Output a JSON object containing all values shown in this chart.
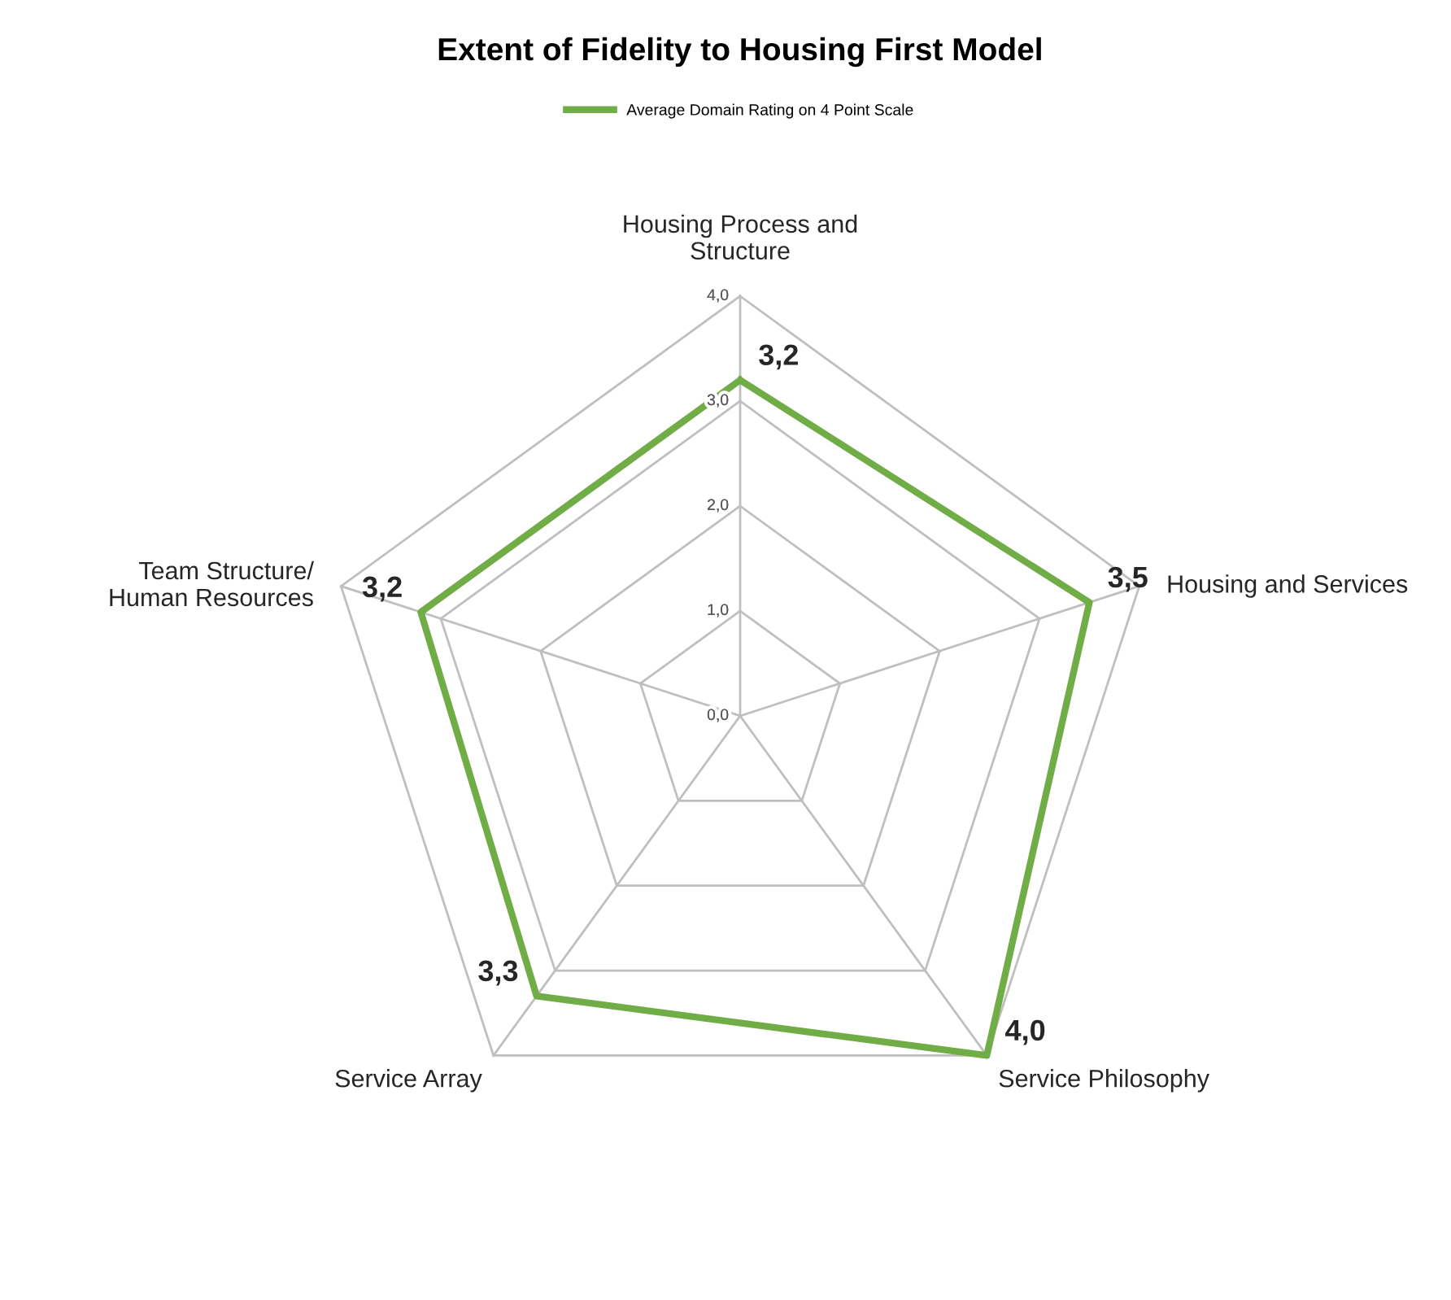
{
  "chart_data": {
    "type": "radar",
    "title": "Extent of Fidelity to Housing First Model",
    "categories": [
      "Housing Process and\nStructure",
      "Housing and Services",
      "Service Philosophy",
      "Service Array",
      "Team Structure/\nHuman Resources"
    ],
    "series": [
      {
        "name": "Average Domain Rating on 4 Point Scale",
        "color": "#70ad47",
        "values": [
          3.2,
          3.5,
          4.0,
          3.3,
          3.2
        ],
        "value_labels": [
          "3,2",
          "3,5",
          "4,0",
          "3,3",
          "3,2"
        ]
      }
    ],
    "ylim": [
      0,
      4
    ],
    "yticks": [
      {
        "value": 0,
        "label": "0,0"
      },
      {
        "value": 1,
        "label": "1,0"
      },
      {
        "value": 2,
        "label": "2,0"
      },
      {
        "value": 3,
        "label": "3,0"
      },
      {
        "value": 4,
        "label": "4,0"
      }
    ],
    "grid": true,
    "legend": "top",
    "marker": "none",
    "line_style": "solid"
  }
}
